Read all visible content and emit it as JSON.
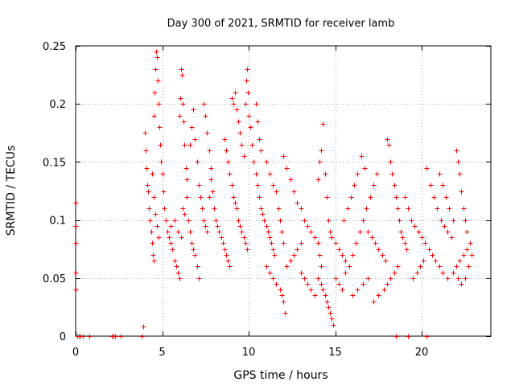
{
  "chart_data": {
    "type": "scatter",
    "title": "Day 300 of 2021, SRMTID for receiver lamb",
    "xlabel": "GPS time / hours",
    "ylabel": "SRMTID / TECUs",
    "xlim": [
      0,
      24
    ],
    "ylim": [
      0,
      0.25
    ],
    "x_ticks": [
      0,
      5,
      10,
      15,
      20
    ],
    "y_ticks": [
      0,
      0.05,
      0.1,
      0.15,
      0.2,
      0.25
    ],
    "x_tick_labels": [
      "0",
      "5",
      "10",
      "15",
      "20"
    ],
    "y_tick_labels": [
      "0",
      "0.05",
      "0.1",
      "0.15",
      "0.2",
      "0.25"
    ],
    "grid": true,
    "marker": "+",
    "series": [
      {
        "name": "SRMTID",
        "color": "#ff0000",
        "points": [
          [
            0.0,
            0.115
          ],
          [
            0.0,
            0.095
          ],
          [
            0.0,
            0.08
          ],
          [
            0.0,
            0.055
          ],
          [
            0.0,
            0.04
          ],
          [
            0.1,
            0.0
          ],
          [
            0.2,
            0.0
          ],
          [
            0.3,
            0.0
          ],
          [
            0.4,
            0.0
          ],
          [
            0.8,
            0.0
          ],
          [
            2.1,
            0.0
          ],
          [
            2.2,
            0.0
          ],
          [
            2.3,
            0.0
          ],
          [
            2.6,
            0.0
          ],
          [
            3.8,
            0.0
          ],
          [
            3.9,
            0.008
          ],
          [
            4.0,
            0.175
          ],
          [
            4.05,
            0.16
          ],
          [
            4.1,
            0.145
          ],
          [
            4.15,
            0.13
          ],
          [
            4.2,
            0.125
          ],
          [
            4.25,
            0.11
          ],
          [
            4.3,
            0.1
          ],
          [
            4.35,
            0.09
          ],
          [
            4.4,
            0.08
          ],
          [
            4.45,
            0.07
          ],
          [
            4.5,
            0.065
          ],
          [
            4.4,
            0.14
          ],
          [
            4.5,
            0.12
          ],
          [
            4.6,
            0.105
          ],
          [
            4.7,
            0.095
          ],
          [
            4.8,
            0.085
          ],
          [
            4.5,
            0.19
          ],
          [
            4.55,
            0.21
          ],
          [
            4.6,
            0.23
          ],
          [
            4.65,
            0.245
          ],
          [
            4.7,
            0.24
          ],
          [
            4.75,
            0.22
          ],
          [
            4.8,
            0.2
          ],
          [
            4.85,
            0.18
          ],
          [
            4.9,
            0.165
          ],
          [
            4.95,
            0.15
          ],
          [
            5.0,
            0.14
          ],
          [
            5.05,
            0.125
          ],
          [
            5.1,
            0.11
          ],
          [
            5.2,
            0.1
          ],
          [
            5.3,
            0.09
          ],
          [
            5.4,
            0.085
          ],
          [
            5.5,
            0.08
          ],
          [
            5.6,
            0.075
          ],
          [
            5.7,
            0.065
          ],
          [
            5.8,
            0.06
          ],
          [
            5.9,
            0.055
          ],
          [
            6.0,
            0.05
          ],
          [
            5.5,
            0.095
          ],
          [
            5.7,
            0.1
          ],
          [
            5.9,
            0.09
          ],
          [
            6.1,
            0.085
          ],
          [
            6.2,
            0.11
          ],
          [
            6.3,
            0.105
          ],
          [
            6.4,
            0.12
          ],
          [
            6.5,
            0.1
          ],
          [
            6.0,
            0.19
          ],
          [
            6.05,
            0.205
          ],
          [
            6.1,
            0.23
          ],
          [
            6.15,
            0.225
          ],
          [
            6.2,
            0.2
          ],
          [
            6.25,
            0.185
          ],
          [
            6.3,
            0.165
          ],
          [
            6.35,
            0.145
          ],
          [
            6.4,
            0.135
          ],
          [
            6.6,
            0.09
          ],
          [
            6.7,
            0.08
          ],
          [
            6.8,
            0.075
          ],
          [
            6.9,
            0.07
          ],
          [
            7.0,
            0.06
          ],
          [
            7.1,
            0.05
          ],
          [
            6.6,
            0.165
          ],
          [
            6.7,
            0.18
          ],
          [
            6.8,
            0.195
          ],
          [
            6.9,
            0.17
          ],
          [
            7.0,
            0.15
          ],
          [
            7.1,
            0.13
          ],
          [
            7.2,
            0.12
          ],
          [
            7.3,
            0.11
          ],
          [
            7.4,
            0.1
          ],
          [
            7.5,
            0.095
          ],
          [
            7.6,
            0.09
          ],
          [
            7.7,
            0.12
          ],
          [
            7.8,
            0.135
          ],
          [
            7.9,
            0.125
          ],
          [
            8.0,
            0.11
          ],
          [
            7.4,
            0.2
          ],
          [
            7.5,
            0.19
          ],
          [
            7.6,
            0.175
          ],
          [
            7.7,
            0.16
          ],
          [
            7.8,
            0.145
          ],
          [
            8.1,
            0.1
          ],
          [
            8.2,
            0.095
          ],
          [
            8.3,
            0.09
          ],
          [
            8.4,
            0.085
          ],
          [
            8.5,
            0.08
          ],
          [
            8.6,
            0.075
          ],
          [
            8.7,
            0.07
          ],
          [
            8.8,
            0.065
          ],
          [
            8.9,
            0.06
          ],
          [
            8.6,
            0.17
          ],
          [
            8.7,
            0.16
          ],
          [
            8.8,
            0.15
          ],
          [
            8.9,
            0.14
          ],
          [
            9.0,
            0.13
          ],
          [
            9.1,
            0.12
          ],
          [
            9.2,
            0.115
          ],
          [
            9.3,
            0.11
          ],
          [
            9.4,
            0.1
          ],
          [
            9.5,
            0.095
          ],
          [
            9.6,
            0.09
          ],
          [
            9.7,
            0.085
          ],
          [
            9.8,
            0.08
          ],
          [
            9.9,
            0.075
          ],
          [
            9.0,
            0.205
          ],
          [
            9.1,
            0.2
          ],
          [
            9.2,
            0.21
          ],
          [
            9.3,
            0.195
          ],
          [
            9.4,
            0.185
          ],
          [
            9.5,
            0.175
          ],
          [
            9.6,
            0.165
          ],
          [
            9.7,
            0.155
          ],
          [
            9.8,
            0.2
          ],
          [
            9.85,
            0.22
          ],
          [
            9.9,
            0.23
          ],
          [
            9.95,
            0.21
          ],
          [
            10.0,
            0.19
          ],
          [
            10.1,
            0.18
          ],
          [
            10.2,
            0.165
          ],
          [
            10.3,
            0.15
          ],
          [
            10.4,
            0.14
          ],
          [
            10.5,
            0.13
          ],
          [
            10.6,
            0.12
          ],
          [
            10.7,
            0.11
          ],
          [
            10.8,
            0.105
          ],
          [
            10.9,
            0.1
          ],
          [
            11.0,
            0.095
          ],
          [
            11.1,
            0.09
          ],
          [
            11.2,
            0.085
          ],
          [
            11.3,
            0.08
          ],
          [
            11.4,
            0.075
          ],
          [
            11.5,
            0.07
          ],
          [
            10.4,
            0.2
          ],
          [
            10.5,
            0.185
          ],
          [
            10.6,
            0.17
          ],
          [
            10.7,
            0.16
          ],
          [
            11.0,
            0.15
          ],
          [
            11.2,
            0.14
          ],
          [
            11.4,
            0.13
          ],
          [
            11.6,
            0.125
          ],
          [
            11.7,
            0.11
          ],
          [
            11.8,
            0.1
          ],
          [
            11.9,
            0.09
          ],
          [
            12.0,
            0.08
          ],
          [
            11.0,
            0.06
          ],
          [
            11.2,
            0.055
          ],
          [
            11.4,
            0.05
          ],
          [
            11.6,
            0.045
          ],
          [
            11.8,
            0.04
          ],
          [
            11.9,
            0.035
          ],
          [
            12.0,
            0.03
          ],
          [
            12.1,
            0.02
          ],
          [
            12.2,
            0.06
          ],
          [
            12.4,
            0.065
          ],
          [
            12.6,
            0.07
          ],
          [
            12.8,
            0.075
          ],
          [
            13.0,
            0.08
          ],
          [
            12.0,
            0.155
          ],
          [
            12.2,
            0.145
          ],
          [
            12.4,
            0.135
          ],
          [
            12.6,
            0.125
          ],
          [
            12.8,
            0.115
          ],
          [
            13.0,
            0.11
          ],
          [
            13.2,
            0.1
          ],
          [
            13.4,
            0.095
          ],
          [
            13.6,
            0.09
          ],
          [
            13.8,
            0.085
          ],
          [
            14.0,
            0.08
          ],
          [
            14.1,
            0.07
          ],
          [
            14.2,
            0.06
          ],
          [
            13.0,
            0.055
          ],
          [
            13.2,
            0.05
          ],
          [
            13.4,
            0.045
          ],
          [
            13.6,
            0.04
          ],
          [
            13.8,
            0.035
          ],
          [
            14.0,
            0.05
          ],
          [
            14.2,
            0.045
          ],
          [
            14.3,
            0.04
          ],
          [
            14.4,
            0.035
          ],
          [
            14.5,
            0.03
          ],
          [
            14.6,
            0.025
          ],
          [
            14.7,
            0.02
          ],
          [
            14.8,
            0.015
          ],
          [
            14.9,
            0.01
          ],
          [
            14.0,
            0.135
          ],
          [
            14.1,
            0.15
          ],
          [
            14.2,
            0.16
          ],
          [
            14.3,
            0.183
          ],
          [
            14.4,
            0.14
          ],
          [
            14.5,
            0.12
          ],
          [
            14.6,
            0.1
          ],
          [
            14.7,
            0.09
          ],
          [
            14.8,
            0.085
          ],
          [
            15.0,
            0.08
          ],
          [
            15.2,
            0.075
          ],
          [
            15.4,
            0.07
          ],
          [
            15.6,
            0.065
          ],
          [
            15.0,
            0.05
          ],
          [
            15.2,
            0.045
          ],
          [
            15.4,
            0.04
          ],
          [
            15.6,
            0.055
          ],
          [
            15.8,
            0.06
          ],
          [
            16.0,
            0.07
          ],
          [
            16.2,
            0.08
          ],
          [
            16.4,
            0.09
          ],
          [
            16.6,
            0.1
          ],
          [
            16.8,
            0.11
          ],
          [
            17.0,
            0.12
          ],
          [
            17.2,
            0.13
          ],
          [
            17.4,
            0.14
          ],
          [
            15.5,
            0.1
          ],
          [
            15.7,
            0.11
          ],
          [
            15.9,
            0.12
          ],
          [
            16.1,
            0.13
          ],
          [
            16.3,
            0.14
          ],
          [
            16.5,
            0.155
          ],
          [
            16.7,
            0.145
          ],
          [
            16.9,
            0.09
          ],
          [
            17.1,
            0.085
          ],
          [
            17.3,
            0.08
          ],
          [
            17.5,
            0.075
          ],
          [
            17.7,
            0.07
          ],
          [
            17.9,
            0.065
          ],
          [
            16.0,
            0.035
          ],
          [
            16.3,
            0.04
          ],
          [
            16.6,
            0.045
          ],
          [
            16.9,
            0.05
          ],
          [
            17.2,
            0.03
          ],
          [
            17.5,
            0.035
          ],
          [
            17.8,
            0.04
          ],
          [
            18.0,
            0.045
          ],
          [
            18.2,
            0.05
          ],
          [
            18.4,
            0.055
          ],
          [
            18.6,
            0.06
          ],
          [
            18.0,
            0.17
          ],
          [
            18.1,
            0.165
          ],
          [
            18.2,
            0.15
          ],
          [
            18.3,
            0.14
          ],
          [
            18.4,
            0.13
          ],
          [
            18.5,
            0.12
          ],
          [
            18.6,
            0.11
          ],
          [
            18.7,
            0.1
          ],
          [
            18.8,
            0.09
          ],
          [
            18.9,
            0.085
          ],
          [
            19.0,
            0.08
          ],
          [
            19.1,
            0.075
          ],
          [
            18.5,
            0.0
          ],
          [
            19.2,
            0.0
          ],
          [
            20.3,
            0.0
          ],
          [
            19.0,
            0.12
          ],
          [
            19.2,
            0.11
          ],
          [
            19.4,
            0.1
          ],
          [
            19.6,
            0.095
          ],
          [
            19.8,
            0.09
          ],
          [
            20.0,
            0.085
          ],
          [
            20.2,
            0.08
          ],
          [
            20.4,
            0.075
          ],
          [
            20.6,
            0.07
          ],
          [
            20.8,
            0.065
          ],
          [
            21.0,
            0.06
          ],
          [
            21.2,
            0.055
          ],
          [
            19.5,
            0.05
          ],
          [
            19.7,
            0.055
          ],
          [
            19.9,
            0.06
          ],
          [
            20.1,
            0.065
          ],
          [
            20.3,
            0.145
          ],
          [
            20.5,
            0.13
          ],
          [
            20.7,
            0.12
          ],
          [
            20.9,
            0.11
          ],
          [
            21.1,
            0.1
          ],
          [
            21.3,
            0.095
          ],
          [
            21.5,
            0.09
          ],
          [
            21.7,
            0.085
          ],
          [
            21.0,
            0.14
          ],
          [
            21.2,
            0.13
          ],
          [
            21.4,
            0.12
          ],
          [
            21.6,
            0.11
          ],
          [
            21.8,
            0.1
          ],
          [
            22.0,
            0.16
          ],
          [
            22.1,
            0.15
          ],
          [
            22.2,
            0.14
          ],
          [
            22.3,
            0.125
          ],
          [
            22.4,
            0.11
          ],
          [
            22.5,
            0.1
          ],
          [
            22.6,
            0.09
          ],
          [
            21.5,
            0.05
          ],
          [
            21.8,
            0.055
          ],
          [
            22.0,
            0.06
          ],
          [
            22.2,
            0.065
          ],
          [
            22.4,
            0.07
          ],
          [
            22.6,
            0.075
          ],
          [
            22.8,
            0.08
          ],
          [
            22.9,
            0.07
          ],
          [
            22.7,
            0.06
          ],
          [
            22.5,
            0.05
          ],
          [
            22.3,
            0.045
          ],
          [
            22.1,
            0.05
          ]
        ]
      }
    ]
  }
}
